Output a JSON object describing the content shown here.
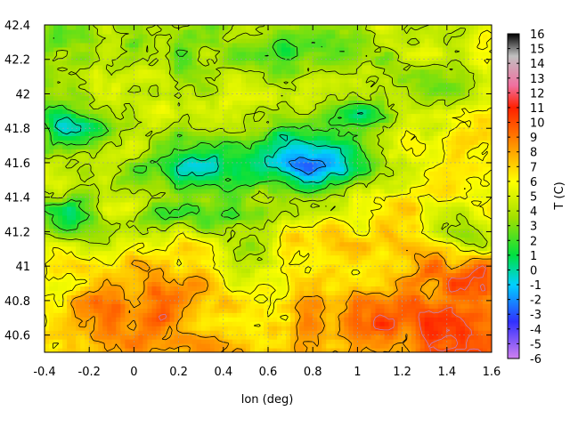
{
  "chart_data": {
    "type": "heatmap",
    "xlabel": "lon (deg)",
    "ylabel": "",
    "colorbar_label": "T (C)",
    "xlim": [
      -0.4,
      1.6
    ],
    "ylim": [
      40.5,
      42.4
    ],
    "xticks": [
      -0.4,
      -0.2,
      0,
      0.2,
      0.4,
      0.6,
      0.8,
      1,
      1.2,
      1.4,
      1.6
    ],
    "yticks": [
      40.6,
      40.8,
      41,
      41.2,
      41.4,
      41.6,
      41.8,
      42,
      42.2,
      42.4
    ],
    "clim": [
      -6,
      16
    ],
    "colorbar_ticks": [
      -6,
      -5,
      -4,
      -3,
      -2,
      -1,
      0,
      1,
      2,
      3,
      4,
      5,
      6,
      7,
      8,
      9,
      10,
      11,
      12,
      13,
      14,
      15,
      16
    ],
    "contours": true,
    "grid": true,
    "colormap": [
      {
        "t": -6,
        "color": "#d080f0"
      },
      {
        "t": -3.5,
        "color": "#3030ff"
      },
      {
        "t": -1,
        "color": "#00d0ff"
      },
      {
        "t": 1,
        "color": "#00e040"
      },
      {
        "t": 3.5,
        "color": "#a0e000"
      },
      {
        "t": 6,
        "color": "#ffff00"
      },
      {
        "t": 8.5,
        "color": "#ff9000"
      },
      {
        "t": 11,
        "color": "#ff2000"
      },
      {
        "t": 12.5,
        "color": "#f070a0"
      },
      {
        "t": 14.5,
        "color": "#c0c0c0"
      },
      {
        "t": 16,
        "color": "#000000"
      }
    ],
    "field_features": [
      {
        "lon": 0.75,
        "lat": 41.62,
        "temp": -2.5,
        "spread_lon": 0.35,
        "spread_lat": 0.18
      },
      {
        "lon": 0.3,
        "lat": 41.58,
        "temp": 0.0,
        "spread_lon": 0.3,
        "spread_lat": 0.15
      },
      {
        "lon": -0.25,
        "lat": 41.82,
        "temp": 0.5,
        "spread_lon": 0.2,
        "spread_lat": 0.12
      },
      {
        "lon": -0.3,
        "lat": 41.3,
        "temp": 1.5,
        "spread_lon": 0.15,
        "spread_lat": 0.12
      },
      {
        "lon": 0.3,
        "lat": 41.3,
        "temp": 2.0,
        "spread_lon": 0.35,
        "spread_lat": 0.12
      },
      {
        "lon": 0.55,
        "lat": 41.1,
        "temp": 3.0,
        "spread_lon": 0.15,
        "spread_lat": 0.25
      },
      {
        "lon": 1.0,
        "lat": 41.88,
        "temp": 1.0,
        "spread_lon": 0.25,
        "spread_lat": 0.12
      },
      {
        "lon": 0.6,
        "lat": 42.25,
        "temp": 2.5,
        "spread_lon": 0.5,
        "spread_lat": 0.15
      },
      {
        "lon": 1.3,
        "lat": 42.05,
        "temp": 3.0,
        "spread_lon": 0.3,
        "spread_lat": 0.15
      },
      {
        "lon": 1.5,
        "lat": 41.2,
        "temp": 2.5,
        "spread_lon": 0.15,
        "spread_lat": 0.15
      },
      {
        "lon": 0.2,
        "lat": 42.3,
        "temp": 3.5,
        "spread_lon": 0.3,
        "spread_lat": 0.1
      },
      {
        "lon": 1.35,
        "lat": 40.65,
        "temp": 10.0,
        "spread_lon": 0.35,
        "spread_lat": 0.2
      },
      {
        "lon": 0.0,
        "lat": 40.75,
        "temp": 9.0,
        "spread_lon": 0.3,
        "spread_lat": 0.2
      },
      {
        "lon": 0.25,
        "lat": 40.9,
        "temp": 9.0,
        "spread_lon": 0.1,
        "spread_lat": 0.08
      },
      {
        "lon": 1.45,
        "lat": 40.9,
        "temp": 9.5,
        "spread_lon": 0.2,
        "spread_lat": 0.15
      },
      {
        "lon": 0.75,
        "lat": 41.15,
        "temp": 7.0,
        "spread_lon": 0.1,
        "spread_lat": 0.08
      }
    ]
  }
}
